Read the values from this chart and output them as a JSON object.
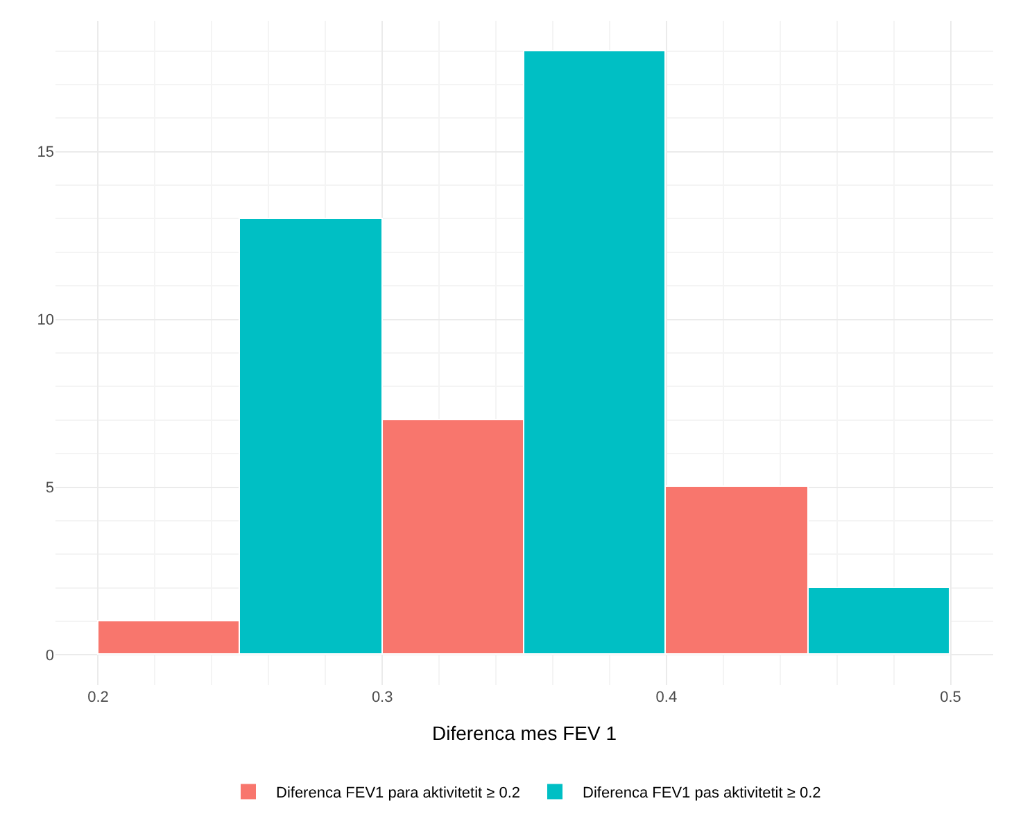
{
  "chart_data": {
    "type": "histogram",
    "xlabel": "Diferenca mes FEV 1",
    "bins": [
      0.2,
      0.25,
      0.3,
      0.35,
      0.4,
      0.45,
      0.5
    ],
    "series": [
      {
        "name": "Diferenca FEV1 para aktivitetit ≥ 0.2",
        "color": "#f8766d",
        "values": [
          1,
          null,
          7,
          null,
          5,
          null
        ]
      },
      {
        "name": "Diferenca FEV1 pas aktivitetit ≥ 0.2",
        "color": "#00bfc4",
        "values": [
          null,
          13,
          null,
          18,
          null,
          2
        ]
      }
    ],
    "xlim": [
      0.185,
      0.515
    ],
    "xticks": [
      0.2,
      0.3,
      0.4,
      0.5
    ],
    "ylim": [
      -0.9,
      18.9
    ],
    "yticks": [
      0,
      5,
      10,
      15
    ],
    "grid": true,
    "legend": "bottom"
  }
}
